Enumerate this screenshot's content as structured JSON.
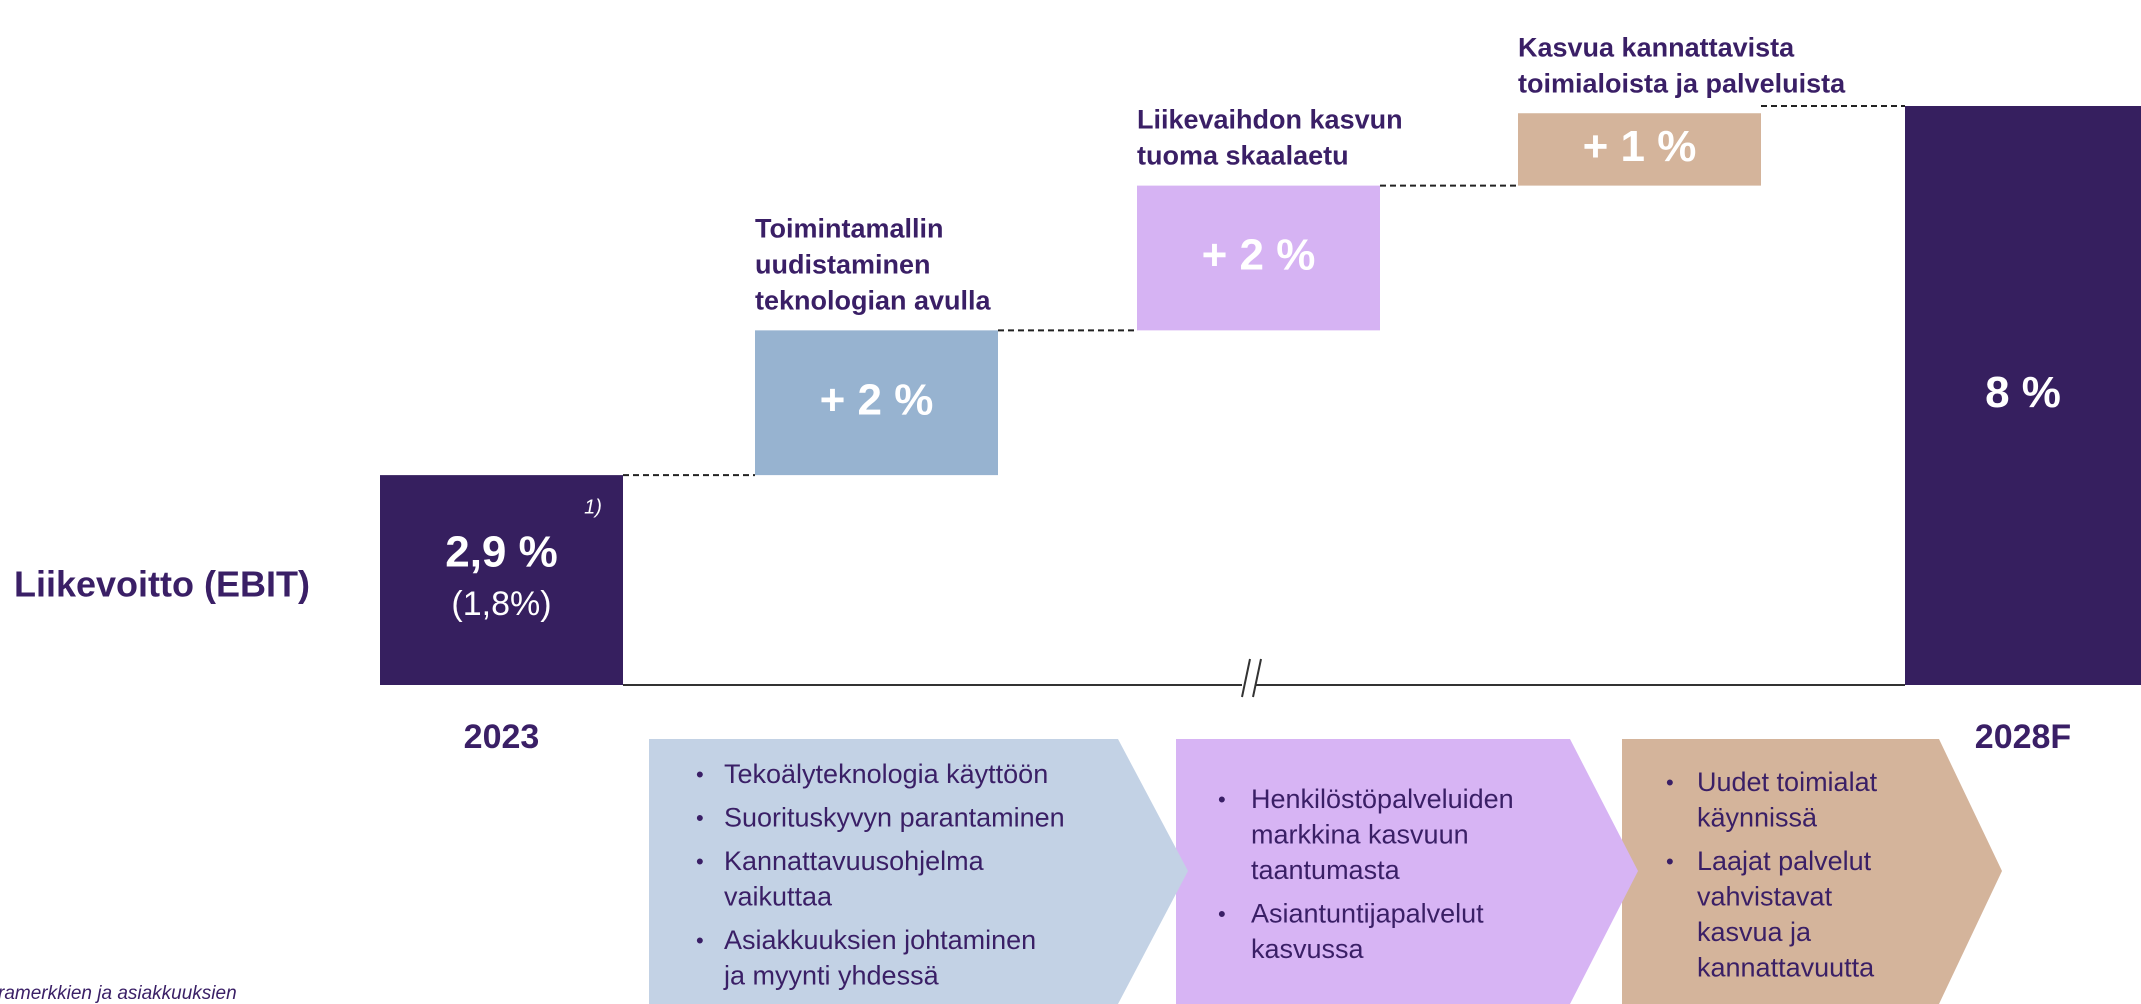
{
  "chart_data": {
    "type": "waterfall",
    "row_label": "Liikevoitto (EBIT)",
    "categories": [
      "2023",
      null,
      null,
      null,
      "2028F"
    ],
    "values": [
      2.9,
      2,
      2,
      1,
      8
    ],
    "value_labels": [
      "2,9 %",
      "+ 2 %",
      "+ 2 %",
      "+ 1 %",
      "8 %"
    ],
    "colors": [
      "#361f5f",
      "#97b3d0",
      "#d6b3f3",
      "#d4b49b",
      "#361f5f"
    ],
    "sub_label": "(1,8%)",
    "footnote_marker": "1)",
    "annotations": [
      null,
      [
        "Toimintamallin",
        "uudistaminen",
        "teknologian avulla"
      ],
      [
        "Liikevaihdon kasvun",
        "tuoma skaalaetu"
      ],
      [
        "Kasvua kannattavista",
        "toimialoista ja palveluista"
      ],
      null
    ]
  },
  "drivers": [
    {
      "color": "#c3d2e5",
      "bullets": [
        [
          "Tekoälyteknologia käyttöön"
        ],
        [
          "Suorituskyvyn parantaminen"
        ],
        [
          "Kannattavuusohjelma",
          "vaikuttaa"
        ],
        [
          "Asiakkuuksien johtaminen",
          "ja myynti yhdessä"
        ]
      ]
    },
    {
      "color": "#d7b4f4",
      "bullets": [
        [
          "Henkilöstöpalveluiden",
          "markkina kasvuun",
          "taantumasta"
        ],
        [
          "Asiantuntijapalvelut",
          "kasvussa"
        ]
      ]
    },
    {
      "color": "#d4b49b",
      "bullets": [
        [
          "Uudet toimialat",
          "käynnissä"
        ],
        [
          "Laajat palvelut",
          "vahvistavat",
          "kasvua ja",
          "kannattavuutta"
        ]
      ]
    }
  ],
  "footnote": "ramerkkien ja asiakkuuksien"
}
